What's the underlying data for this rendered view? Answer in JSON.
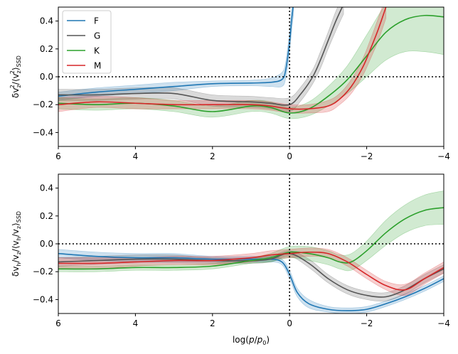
{
  "chart_data": [
    {
      "type": "line",
      "title": "",
      "xlabel": "",
      "ylabel": "δv_z²/⟨v_z²⟩_SSD",
      "ylabel_parts": {
        "pre": "δv",
        "sub1": "z",
        "sup1": "2",
        "mid": "/⟨v",
        "sub2": "z",
        "sup2": "2",
        "post": "⟩",
        "sub3": "SSD"
      },
      "xlim": [
        6,
        -4
      ],
      "ylim": [
        -0.5,
        0.5
      ],
      "xticks": [
        6,
        4,
        2,
        0,
        -2,
        -4
      ],
      "xtick_labels": [
        "6",
        "4",
        "2",
        "0",
        "−2",
        "−4"
      ],
      "yticks": [
        -0.4,
        -0.2,
        0.0,
        0.2,
        0.4
      ],
      "ytick_labels": [
        "−0.4",
        "−0.2",
        "0.0",
        "0.2",
        "0.4"
      ],
      "reference_lines": {
        "y": 0.0,
        "x": 0.0
      },
      "legend": {
        "placement": "top-left",
        "entries": [
          "F",
          "G",
          "K",
          "M"
        ]
      },
      "series": [
        {
          "name": "F",
          "color": "#1f77b4",
          "x": [
            6,
            5,
            4,
            3,
            2,
            1,
            0.5,
            0.2,
            0.1,
            0.0,
            -0.05,
            -0.1
          ],
          "y": [
            -0.14,
            -0.11,
            -0.09,
            -0.07,
            -0.05,
            -0.045,
            -0.04,
            -0.02,
            0.05,
            0.25,
            0.4,
            0.52
          ],
          "band": [
            0.03,
            0.03,
            0.03,
            0.03,
            0.02,
            0.02,
            0.03,
            0.05,
            0.06,
            0.08,
            0.08,
            0.08
          ]
        },
        {
          "name": "G",
          "color": "#555555",
          "x": [
            6,
            5,
            4,
            3,
            2,
            1,
            0.5,
            0,
            -0.3,
            -0.6,
            -0.8,
            -1.0,
            -1.2,
            -1.4
          ],
          "y": [
            -0.13,
            -0.13,
            -0.12,
            -0.12,
            -0.17,
            -0.18,
            -0.19,
            -0.2,
            -0.12,
            0.0,
            0.12,
            0.26,
            0.4,
            0.52
          ],
          "band": [
            0.04,
            0.04,
            0.04,
            0.04,
            0.04,
            0.04,
            0.04,
            0.05,
            0.05,
            0.05,
            0.06,
            0.06,
            0.07,
            0.07
          ]
        },
        {
          "name": "K",
          "color": "#2ca02c",
          "x": [
            6,
            5,
            4,
            3,
            2,
            1,
            0.5,
            0,
            -0.5,
            -1.0,
            -1.5,
            -2.0,
            -2.5,
            -3.0,
            -3.5,
            -4.0
          ],
          "y": [
            -0.19,
            -0.2,
            -0.19,
            -0.21,
            -0.25,
            -0.21,
            -0.22,
            -0.26,
            -0.23,
            -0.14,
            -0.02,
            0.15,
            0.32,
            0.41,
            0.44,
            0.43
          ],
          "band": [
            0.04,
            0.04,
            0.04,
            0.04,
            0.04,
            0.04,
            0.04,
            0.04,
            0.05,
            0.07,
            0.1,
            0.15,
            0.2,
            0.23,
            0.26,
            0.27
          ]
        },
        {
          "name": "M",
          "color": "#d62728",
          "x": [
            6,
            5,
            4,
            3,
            2,
            1,
            0.5,
            0,
            -0.5,
            -1.0,
            -1.3,
            -1.6,
            -1.9,
            -2.1,
            -2.3,
            -2.5
          ],
          "y": [
            -0.2,
            -0.18,
            -0.19,
            -0.2,
            -0.2,
            -0.2,
            -0.21,
            -0.23,
            -0.23,
            -0.21,
            -0.16,
            -0.07,
            0.07,
            0.2,
            0.34,
            0.5
          ],
          "band": [
            0.05,
            0.04,
            0.04,
            0.03,
            0.03,
            0.03,
            0.03,
            0.03,
            0.03,
            0.04,
            0.04,
            0.05,
            0.06,
            0.07,
            0.08,
            0.08
          ]
        }
      ]
    },
    {
      "type": "line",
      "title": "",
      "xlabel": "log(p/p₀)",
      "xlabel_parts": {
        "pre": "log(",
        "var": "p",
        "slash": "/",
        "var2": "p",
        "sub": "0",
        "post": ")"
      },
      "ylabel": "δv_h/v_z/⟨v_h/v_z⟩_SSD",
      "ylabel_parts": {
        "pre": "δv",
        "sub1": "h",
        "mid1": "/v",
        "sub2": "z",
        "mid2": "/⟨v",
        "sub3": "h",
        "mid3": "/v",
        "sub4": "z",
        "post": "⟩",
        "sub5": "SSD"
      },
      "xlim": [
        6,
        -4
      ],
      "ylim": [
        -0.5,
        0.5
      ],
      "xticks": [
        6,
        4,
        2,
        0,
        -2,
        -4
      ],
      "xtick_labels": [
        "6",
        "4",
        "2",
        "0",
        "−2",
        "−4"
      ],
      "yticks": [
        -0.4,
        -0.2,
        0.0,
        0.2,
        0.4
      ],
      "ytick_labels": [
        "−0.4",
        "−0.2",
        "0.0",
        "0.2",
        "0.4"
      ],
      "reference_lines": {
        "y": 0.0,
        "x": 0.0
      },
      "series": [
        {
          "name": "F",
          "color": "#1f77b4",
          "x": [
            6,
            5,
            4,
            3,
            2,
            1,
            0.5,
            0.2,
            0,
            -0.2,
            -0.5,
            -1.0,
            -1.5,
            -2.0,
            -2.5,
            -3.0,
            -3.5,
            -4.0
          ],
          "y": [
            -0.07,
            -0.09,
            -0.1,
            -0.1,
            -0.11,
            -0.11,
            -0.11,
            -0.13,
            -0.22,
            -0.35,
            -0.43,
            -0.47,
            -0.48,
            -0.47,
            -0.43,
            -0.38,
            -0.32,
            -0.25
          ],
          "band": [
            0.03,
            0.03,
            0.03,
            0.03,
            0.02,
            0.02,
            0.02,
            0.02,
            0.03,
            0.03,
            0.03,
            0.02,
            0.02,
            0.02,
            0.02,
            0.02,
            0.02,
            0.02
          ]
        },
        {
          "name": "G",
          "color": "#555555",
          "x": [
            6,
            5,
            4,
            3,
            2,
            1,
            0.5,
            0,
            -0.5,
            -1.0,
            -1.5,
            -2.0,
            -2.5,
            -3.0,
            -3.5,
            -4.0
          ],
          "y": [
            -0.13,
            -0.12,
            -0.11,
            -0.11,
            -0.12,
            -0.12,
            -0.11,
            -0.07,
            -0.14,
            -0.25,
            -0.33,
            -0.37,
            -0.38,
            -0.33,
            -0.25,
            -0.18
          ],
          "band": [
            0.03,
            0.03,
            0.03,
            0.03,
            0.02,
            0.02,
            0.02,
            0.02,
            0.03,
            0.03,
            0.03,
            0.03,
            0.03,
            0.03,
            0.03,
            0.03
          ]
        },
        {
          "name": "K",
          "color": "#2ca02c",
          "x": [
            6,
            5,
            4,
            3,
            2,
            1,
            0.5,
            0,
            -0.5,
            -1.0,
            -1.3,
            -1.6,
            -2.0,
            -2.5,
            -3.0,
            -3.5,
            -4.0
          ],
          "y": [
            -0.18,
            -0.18,
            -0.17,
            -0.17,
            -0.16,
            -0.12,
            -0.1,
            -0.06,
            -0.07,
            -0.1,
            -0.13,
            -0.13,
            -0.05,
            0.08,
            0.18,
            0.24,
            0.26
          ],
          "band": [
            0.02,
            0.02,
            0.02,
            0.02,
            0.02,
            0.02,
            0.03,
            0.04,
            0.05,
            0.05,
            0.05,
            0.06,
            0.07,
            0.09,
            0.1,
            0.11,
            0.12
          ]
        },
        {
          "name": "M",
          "color": "#d62728",
          "x": [
            6,
            5,
            4,
            3,
            2,
            1,
            0.5,
            0,
            -0.5,
            -1.0,
            -1.5,
            -2.0,
            -2.5,
            -3.0,
            -3.5,
            -4.0
          ],
          "y": [
            -0.14,
            -0.14,
            -0.13,
            -0.12,
            -0.12,
            -0.1,
            -0.08,
            -0.07,
            -0.06,
            -0.07,
            -0.13,
            -0.22,
            -0.3,
            -0.33,
            -0.25,
            -0.17
          ],
          "band": [
            0.04,
            0.04,
            0.03,
            0.03,
            0.03,
            0.03,
            0.03,
            0.03,
            0.03,
            0.03,
            0.03,
            0.03,
            0.03,
            0.04,
            0.04,
            0.04
          ]
        }
      ]
    }
  ]
}
